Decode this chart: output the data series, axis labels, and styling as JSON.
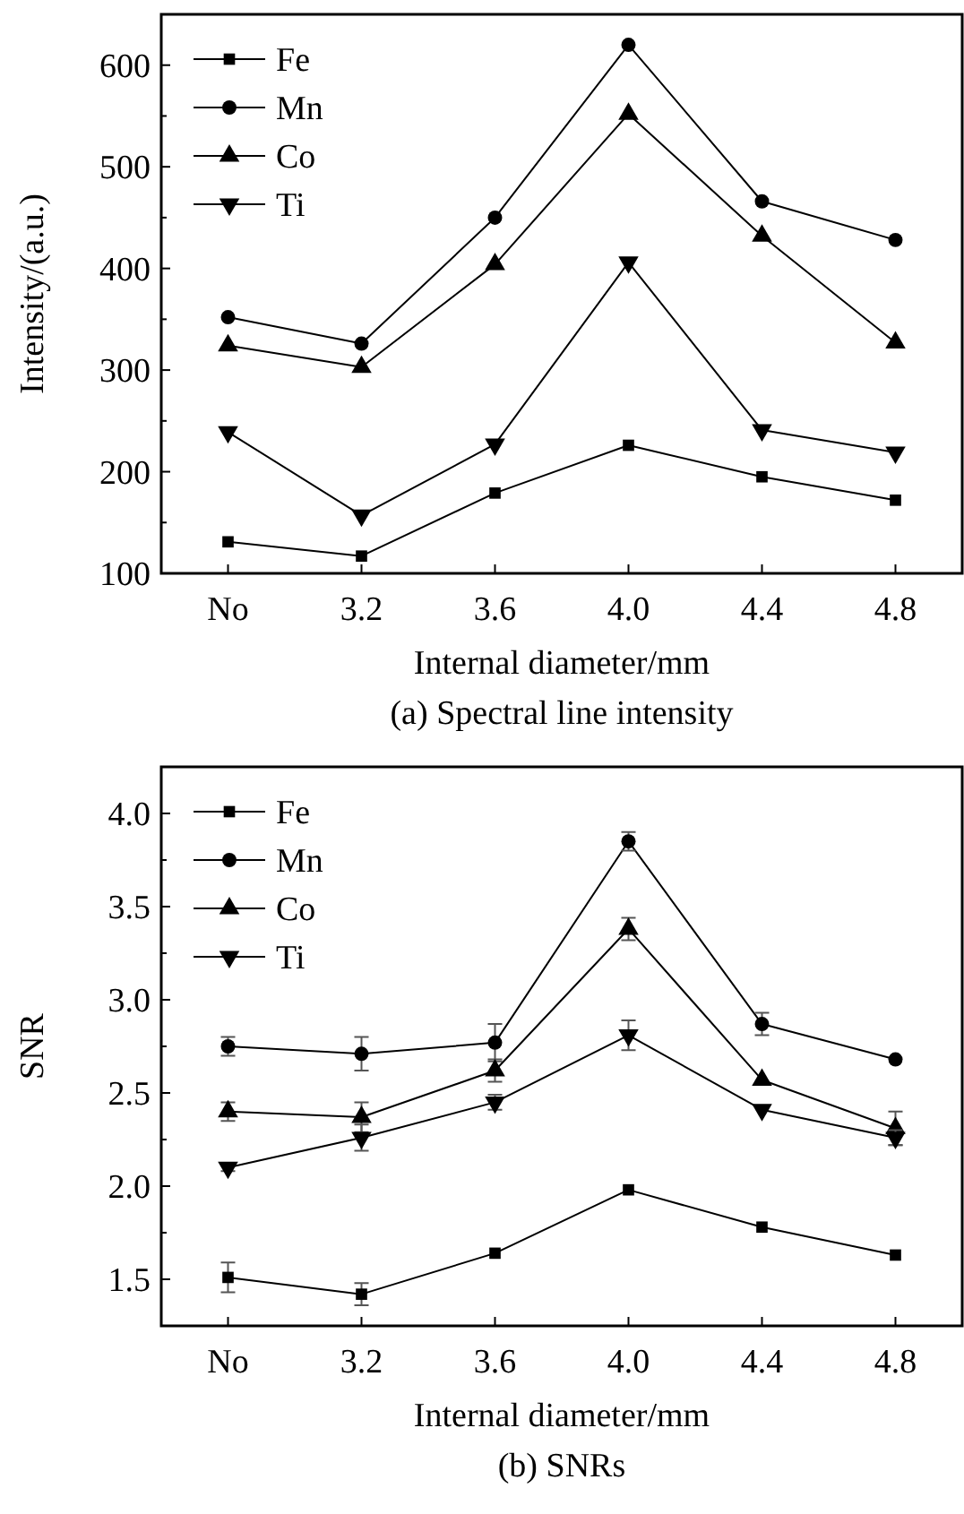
{
  "chart_data": [
    {
      "type": "line",
      "title": "(a) Spectral line intensity",
      "xlabel": "Internal diameter/mm",
      "ylabel": "Intensity/(a.u.)",
      "categories": [
        "No",
        "3.2",
        "3.6",
        "4.0",
        "4.4",
        "4.8"
      ],
      "ylim": [
        100,
        650
      ],
      "yticks": [
        100,
        {
          "value": 150,
          "label": null
        },
        200,
        {
          "value": 250,
          "label": null
        },
        300,
        {
          "value": 350,
          "label": null
        },
        400,
        {
          "value": 450,
          "label": null
        },
        500,
        {
          "value": 550,
          "label": null
        },
        600
      ],
      "legend": "top left",
      "grid": false,
      "line_style": "solid",
      "series": [
        {
          "name": "Fe",
          "color": "#000000",
          "marker": "square",
          "values": [
            131,
            117,
            179,
            226,
            195,
            172
          ]
        },
        {
          "name": "Mn",
          "color": "#000000",
          "marker": "circle",
          "values": [
            352,
            326,
            450,
            620,
            466,
            428
          ]
        },
        {
          "name": "Co",
          "color": "#000000",
          "marker": "triangle",
          "values": [
            324,
            303,
            404,
            552,
            432,
            327
          ]
        },
        {
          "name": "Ti",
          "color": "#000000",
          "marker": "triangle-down",
          "values": [
            239,
            157,
            227,
            406,
            241,
            219
          ]
        }
      ]
    },
    {
      "type": "line",
      "title": "(b) SNRs",
      "xlabel": "Internal diameter/mm",
      "ylabel": "SNR",
      "categories": [
        "No",
        "3.2",
        "3.6",
        "4.0",
        "4.4",
        "4.8"
      ],
      "ylim": [
        1.25,
        4.25
      ],
      "yticks": [
        {
          "value": 1.5,
          "label": "1.5"
        },
        {
          "value": 1.75,
          "label": null
        },
        {
          "value": 2,
          "label": "2.0"
        },
        {
          "value": 2.25,
          "label": null
        },
        {
          "value": 2.5,
          "label": "2.5"
        },
        {
          "value": 2.75,
          "label": null
        },
        {
          "value": 3,
          "label": "3.0"
        },
        {
          "value": 3.25,
          "label": null
        },
        {
          "value": 3.5,
          "label": "3.5"
        },
        {
          "value": 3.75,
          "label": null
        },
        {
          "value": 4,
          "label": "4.0"
        }
      ],
      "legend": "top left",
      "grid": false,
      "line_style": "solid",
      "series": [
        {
          "name": "Fe",
          "color": "#000000",
          "marker": "square",
          "values": [
            1.51,
            1.42,
            1.64,
            1.98,
            1.78,
            1.63
          ],
          "errors": [
            0.08,
            0.06,
            null,
            null,
            null,
            null
          ]
        },
        {
          "name": "Mn",
          "color": "#000000",
          "marker": "circle",
          "values": [
            2.75,
            2.71,
            2.77,
            3.85,
            2.87,
            2.68
          ],
          "errors": [
            0.05,
            0.09,
            0.1,
            0.05,
            0.06,
            null
          ]
        },
        {
          "name": "Co",
          "color": "#000000",
          "marker": "triangle",
          "values": [
            2.4,
            2.37,
            2.62,
            3.38,
            2.57,
            2.31
          ],
          "errors": [
            0.05,
            0.08,
            0.06,
            0.06,
            null,
            0.09
          ]
        },
        {
          "name": "Ti",
          "color": "#000000",
          "marker": "triangle-down",
          "values": [
            2.1,
            2.26,
            2.45,
            2.81,
            2.41,
            2.26
          ],
          "errors": [
            0.02,
            0.07,
            0.04,
            0.08,
            null,
            0.04
          ]
        }
      ]
    }
  ]
}
